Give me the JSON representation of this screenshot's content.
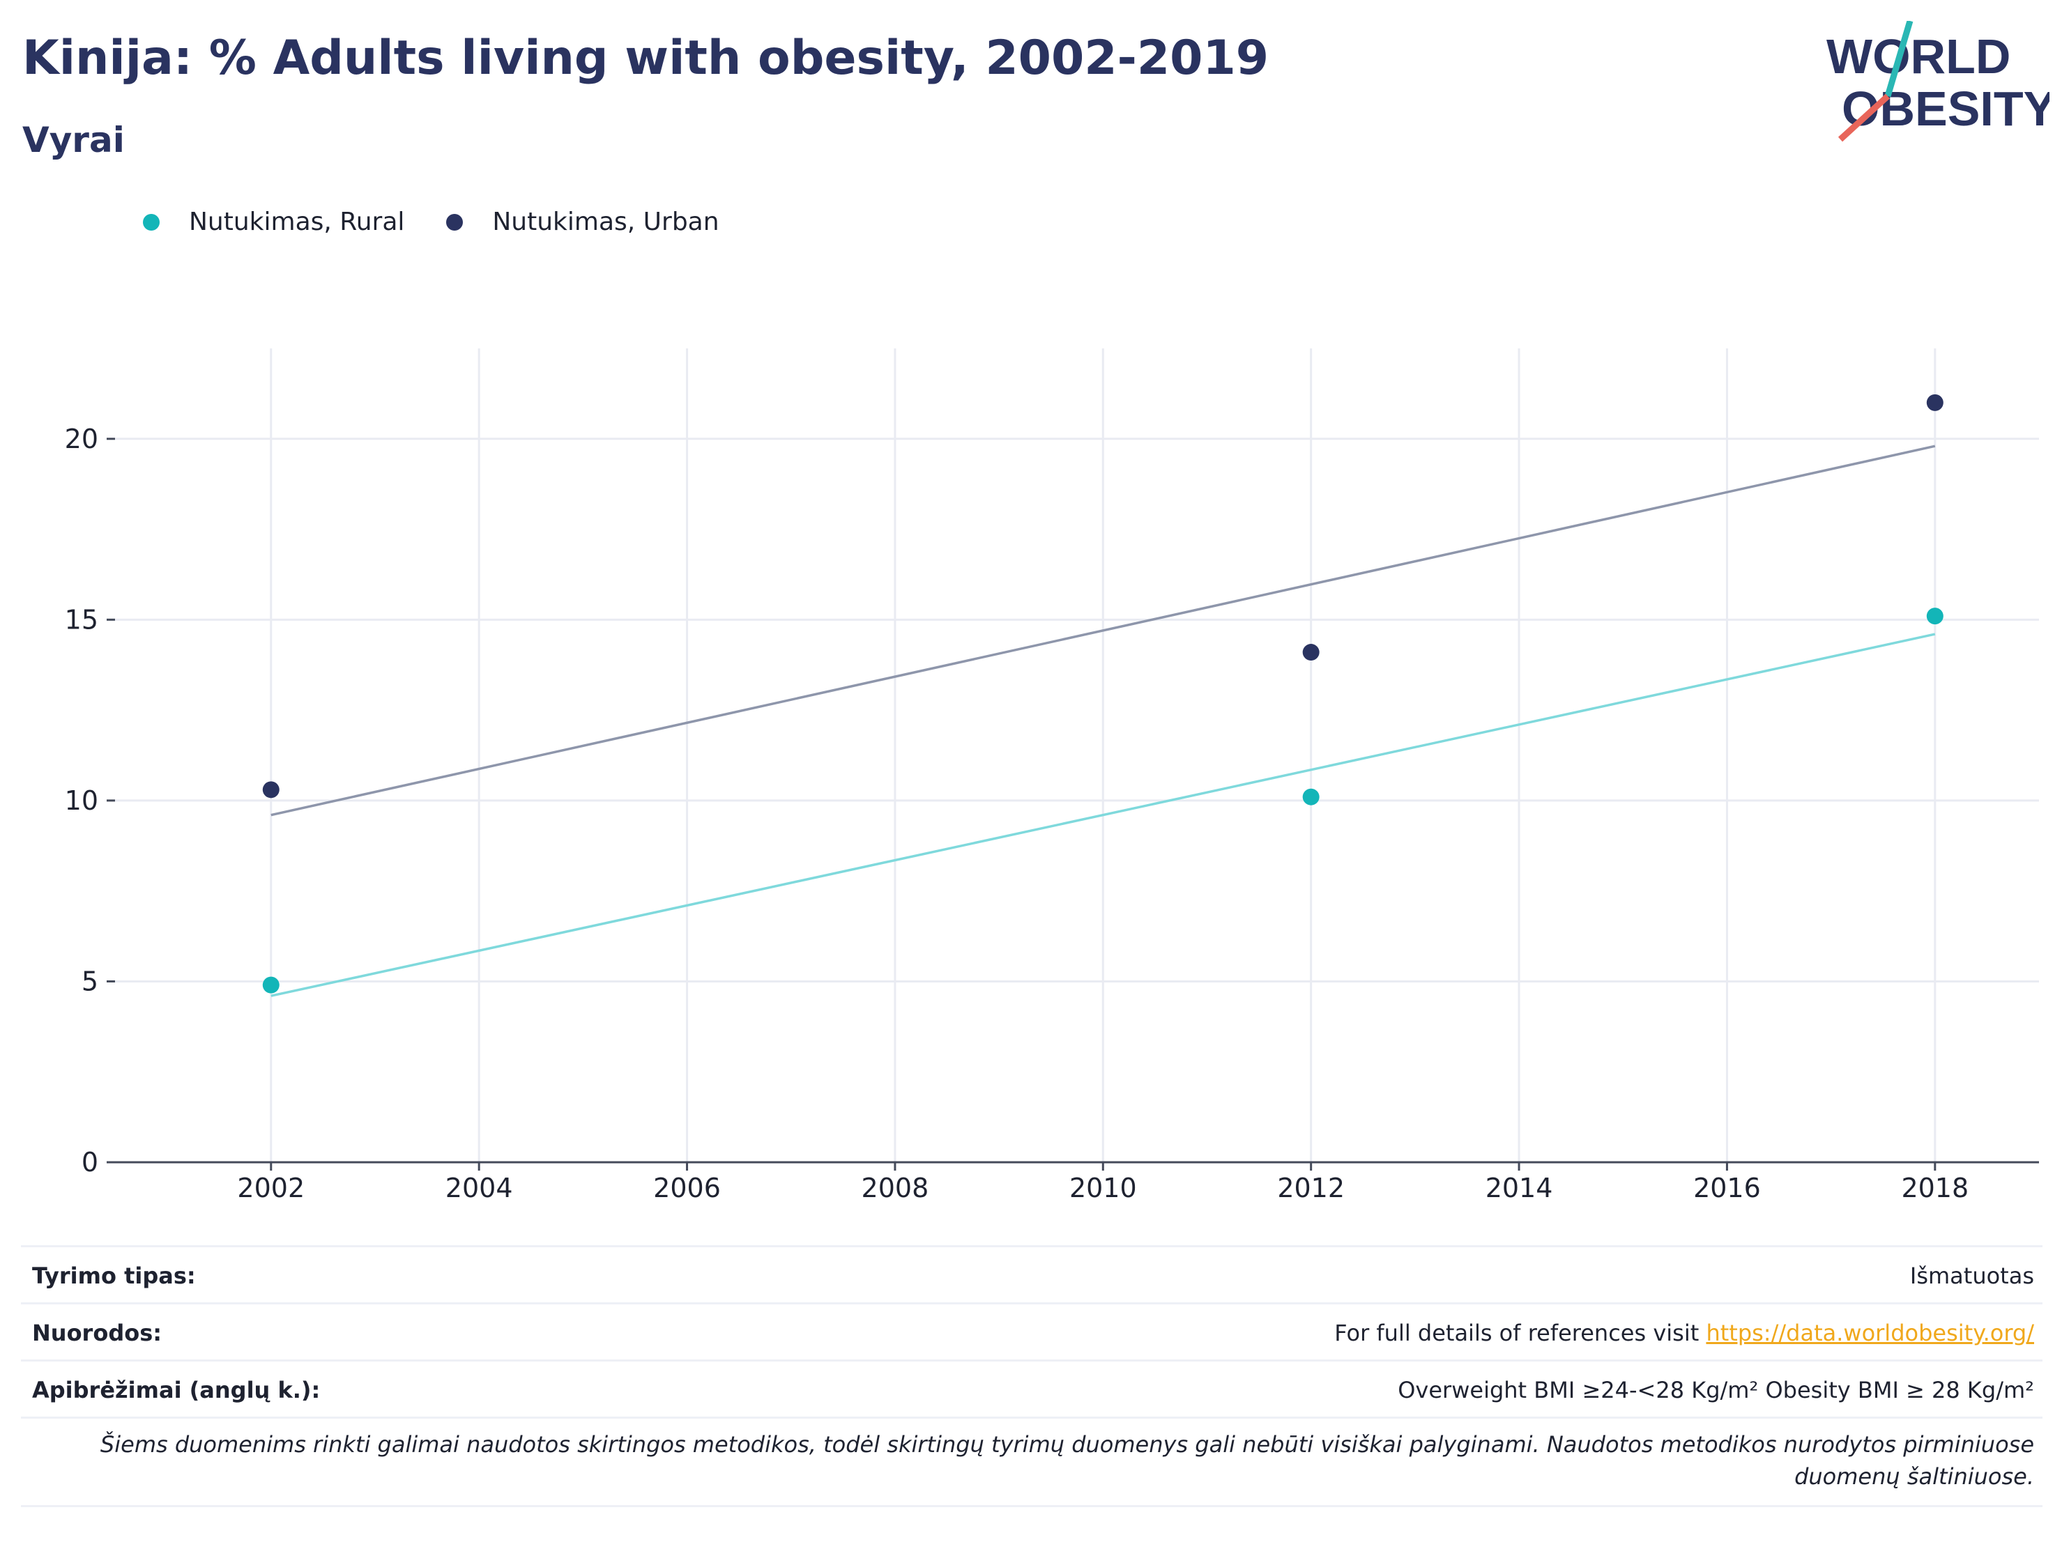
{
  "header": {
    "title": "Kinija: % Adults living with obesity, 2002-2019",
    "subtitle": "Vyrai"
  },
  "logo": {
    "line1": "WORLD",
    "line2": "OBESITY"
  },
  "legend": [
    {
      "label": "Nutukimas, Rural",
      "color": "#13b5b8"
    },
    {
      "label": "Nutukimas, Urban",
      "color": "#2a3360"
    }
  ],
  "chart_data": {
    "type": "scatter",
    "title": "Kinija: % Adults living with obesity, 2002-2019",
    "subtitle": "Vyrai",
    "xlabel": "",
    "ylabel": "",
    "xlim": [
      2000.5,
      2019
    ],
    "ylim": [
      0,
      22.5
    ],
    "x_ticks": [
      2002,
      2004,
      2006,
      2008,
      2010,
      2012,
      2014,
      2016,
      2018
    ],
    "y_ticks": [
      0,
      5,
      10,
      15,
      20
    ],
    "grid": true,
    "legend_position": "top-left",
    "series": [
      {
        "name": "Nutukimas, Rural",
        "color": "#13b5b8",
        "trend_color": "#7fd9dc",
        "points": [
          {
            "x": 2002,
            "y": 4.9
          },
          {
            "x": 2012,
            "y": 10.1
          },
          {
            "x": 2018,
            "y": 15.1
          }
        ],
        "trend": [
          {
            "x": 2002,
            "y": 4.6
          },
          {
            "x": 2018,
            "y": 14.6
          }
        ]
      },
      {
        "name": "Nutukimas, Urban",
        "color": "#2a3360",
        "trend_color": "#8e96ab",
        "points": [
          {
            "x": 2002,
            "y": 10.3
          },
          {
            "x": 2012,
            "y": 14.1
          },
          {
            "x": 2018,
            "y": 21.0
          }
        ],
        "trend": [
          {
            "x": 2002,
            "y": 9.6
          },
          {
            "x": 2018,
            "y": 19.8
          }
        ]
      }
    ]
  },
  "info": {
    "survey_type_label": "Tyrimo tipas:",
    "survey_type_value": "Išmatuotas",
    "references_label": "Nuorodos:",
    "references_text": "For full details of references visit ",
    "references_link": "https://data.worldobesity.org/",
    "definitions_label": "Apibrėžimai (anglų k.):",
    "definitions_value": "Overweight BMI ≥24-<28 Kg/m² Obesity BMI ≥ 28 Kg/m²",
    "note": "Šiems duomenims rinkti galimai naudotos skirtingos metodikos, todėl skirtingų tyrimų duomenys gali nebūti visiškai palyginami. Naudotos metodikos nurodytos pirminiuose duomenų šaltiniuose."
  }
}
